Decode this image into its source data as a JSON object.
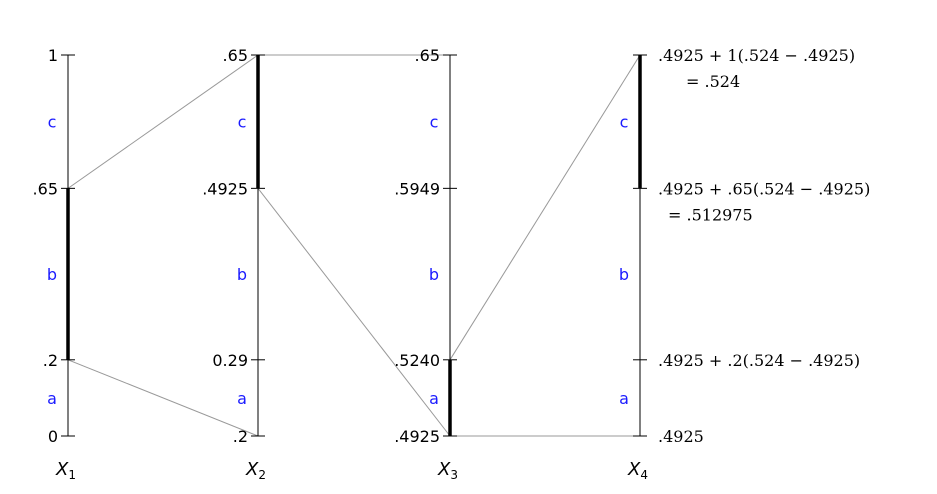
{
  "axes": [
    {
      "var": "X",
      "sub": "1",
      "ticks": [
        {
          "frac": 0,
          "label": "0"
        },
        {
          "frac": 0.2,
          "label": ".2"
        },
        {
          "frac": 0.65,
          "label": ".65"
        },
        {
          "frac": 1,
          "label": "1"
        }
      ],
      "segments": [
        {
          "label": "a",
          "from": 0,
          "to": 0.2
        },
        {
          "label": "b",
          "from": 0.2,
          "to": 0.65
        },
        {
          "label": "c",
          "from": 0.65,
          "to": 1
        }
      ],
      "selected": {
        "from": 0.2,
        "to": 0.65
      }
    },
    {
      "var": "X",
      "sub": "2",
      "ticks": [
        {
          "frac": 0,
          "label": ".2"
        },
        {
          "frac": 0.2,
          "label": "0.29"
        },
        {
          "frac": 0.65,
          "label": ".4925"
        },
        {
          "frac": 1,
          "label": ".65"
        }
      ],
      "segments": [
        {
          "label": "a",
          "from": 0,
          "to": 0.2
        },
        {
          "label": "b",
          "from": 0.2,
          "to": 0.65
        },
        {
          "label": "c",
          "from": 0.65,
          "to": 1
        }
      ],
      "selected": {
        "from": 0.65,
        "to": 1
      }
    },
    {
      "var": "X",
      "sub": "3",
      "ticks": [
        {
          "frac": 0,
          "label": ".4925"
        },
        {
          "frac": 0.2,
          "label": ".5240"
        },
        {
          "frac": 0.65,
          "label": ".5949"
        },
        {
          "frac": 1,
          "label": ".65"
        }
      ],
      "segments": [
        {
          "label": "a",
          "from": 0,
          "to": 0.2
        },
        {
          "label": "b",
          "from": 0.2,
          "to": 0.65
        },
        {
          "label": "c",
          "from": 0.65,
          "to": 1
        }
      ],
      "selected": {
        "from": 0,
        "to": 0.2
      }
    },
    {
      "var": "X",
      "sub": "4",
      "ticks": [
        {
          "frac": 0,
          "label": ".4925"
        },
        {
          "frac": 0.2,
          "label": ".4925 + .2(.524 − .4925)"
        },
        {
          "frac": 0.65,
          "label": ".4925 + .65(.524 − .4925)",
          "label2": "= .512975"
        },
        {
          "frac": 1,
          "label": ".4925 + 1(.524 − .4925)",
          "label2": "= .524"
        }
      ],
      "segments": [
        {
          "label": "a",
          "from": 0,
          "to": 0.2
        },
        {
          "label": "b",
          "from": 0.2,
          "to": 0.65
        },
        {
          "label": "c",
          "from": 0.65,
          "to": 1
        }
      ],
      "selected": {
        "from": 0.65,
        "to": 1
      }
    }
  ],
  "connections": [
    {
      "from_axis": 0,
      "to_axis": 1,
      "pairs": [
        [
          0.65,
          1
        ],
        [
          0.2,
          0
        ]
      ]
    },
    {
      "from_axis": 1,
      "to_axis": 2,
      "pairs": [
        [
          1,
          1
        ],
        [
          0.65,
          0
        ]
      ]
    },
    {
      "from_axis": 2,
      "to_axis": 3,
      "pairs": [
        [
          0.2,
          1
        ],
        [
          0,
          0
        ]
      ]
    }
  ],
  "colors": {
    "segment_label": "#1a1aff",
    "connector": "#999999",
    "axis": "#000000"
  }
}
